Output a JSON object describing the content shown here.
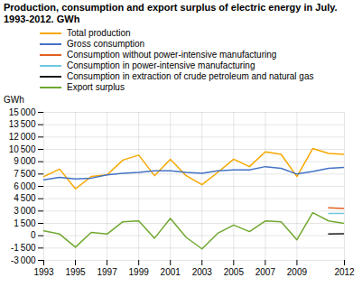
{
  "chart_data": {
    "type": "line",
    "title": "Production, consumption and export surplus of electric energy in July.",
    "subtitle": "1993-2012. GWh",
    "ylabel": "GWh",
    "x": [
      1993,
      1994,
      1995,
      1996,
      1997,
      1998,
      1999,
      2000,
      2001,
      2002,
      2003,
      2004,
      2005,
      2006,
      2007,
      2008,
      2009,
      2010,
      2011,
      2012
    ],
    "series": [
      {
        "name": "Total production",
        "color": "#f5a800",
        "values": [
          7200,
          8100,
          5700,
          7200,
          7400,
          9200,
          9800,
          7300,
          9300,
          7300,
          6200,
          7700,
          9300,
          8400,
          10200,
          9900,
          7200,
          10600,
          10000,
          9900
        ]
      },
      {
        "name": "Gross consumption",
        "color": "#4472c4",
        "values": [
          6800,
          7100,
          6900,
          7000,
          7400,
          7600,
          7700,
          7900,
          7900,
          7700,
          7600,
          7900,
          8000,
          8000,
          8400,
          8200,
          7500,
          7800,
          8200,
          8300
        ]
      },
      {
        "name": "Consumption without power-intensive manufacturing",
        "color": "#e06020",
        "values": [
          null,
          null,
          null,
          null,
          null,
          null,
          null,
          null,
          null,
          null,
          null,
          null,
          null,
          null,
          null,
          null,
          null,
          null,
          3400,
          3300
        ]
      },
      {
        "name": "Consumption in power-intensive manufacturing",
        "color": "#70c8e0",
        "values": [
          null,
          null,
          null,
          null,
          null,
          null,
          null,
          null,
          null,
          null,
          null,
          null,
          null,
          null,
          null,
          null,
          null,
          null,
          2700,
          2700
        ]
      },
      {
        "name": "Consumption in extraction of crude petroleum and natural gas",
        "color": "#1a1a1a",
        "values": [
          null,
          null,
          null,
          null,
          null,
          null,
          null,
          null,
          null,
          null,
          null,
          null,
          null,
          null,
          null,
          null,
          null,
          null,
          200,
          250
        ]
      },
      {
        "name": "Export surplus",
        "color": "#70a830",
        "values": [
          600,
          200,
          -1400,
          400,
          200,
          1700,
          1800,
          -300,
          2100,
          -200,
          -1600,
          300,
          1300,
          500,
          1800,
          1700,
          -500,
          2800,
          1800,
          1500
        ]
      }
    ],
    "xlim": [
      1993,
      2012
    ],
    "xticks": [
      1993,
      1995,
      1997,
      1999,
      2001,
      2003,
      2005,
      2007,
      2009,
      2012
    ],
    "ylim": [
      -3000,
      15000
    ],
    "yticks": [
      {
        "value": -3000,
        "label": "-3 000"
      },
      {
        "value": -1500,
        "label": "-1 500"
      },
      0,
      {
        "value": 1500,
        "label": "1 500"
      },
      {
        "value": 3000,
        "label": "3 000"
      },
      {
        "value": 4500,
        "label": "4 500"
      },
      {
        "value": 6000,
        "label": "6 000"
      },
      {
        "value": 7500,
        "label": "7 500"
      },
      {
        "value": 9000,
        "label": "9 000"
      },
      {
        "value": 10500,
        "label": "10 500"
      },
      {
        "value": 12000,
        "label": "12 000"
      },
      {
        "value": 13500,
        "label": "13 500"
      },
      {
        "value": 15000,
        "label": "15 000"
      }
    ],
    "grid": true,
    "legend": "upper left"
  }
}
